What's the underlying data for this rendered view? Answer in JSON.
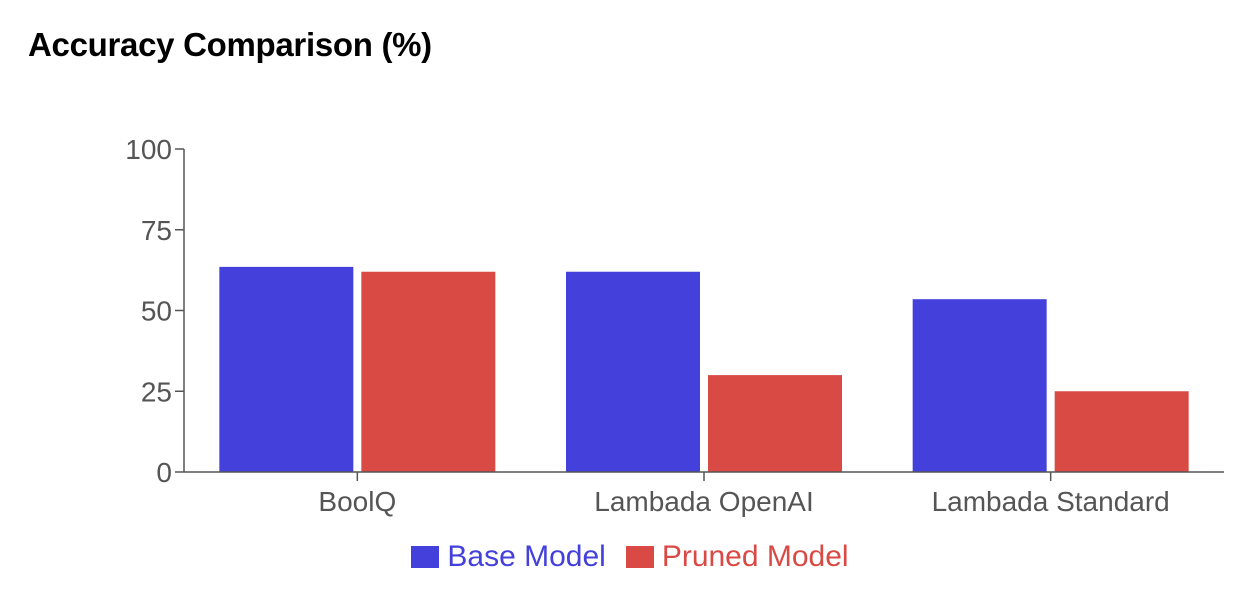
{
  "chart_data": {
    "type": "bar",
    "title": "Accuracy Comparison (%)",
    "categories": [
      "BoolQ",
      "Lambada OpenAI",
      "Lambada Standard"
    ],
    "series": [
      {
        "name": "Base Model",
        "values": [
          63.5,
          62.0,
          53.5
        ],
        "color": "#4440db"
      },
      {
        "name": "Pruned Model",
        "values": [
          62.0,
          30.0,
          25.0
        ],
        "color": "#d94a45"
      }
    ],
    "y_ticks": [
      "0",
      "25",
      "50",
      "75",
      "100"
    ],
    "ylim": [
      0,
      100
    ],
    "legend_position": "bottom-center",
    "grid": false
  }
}
